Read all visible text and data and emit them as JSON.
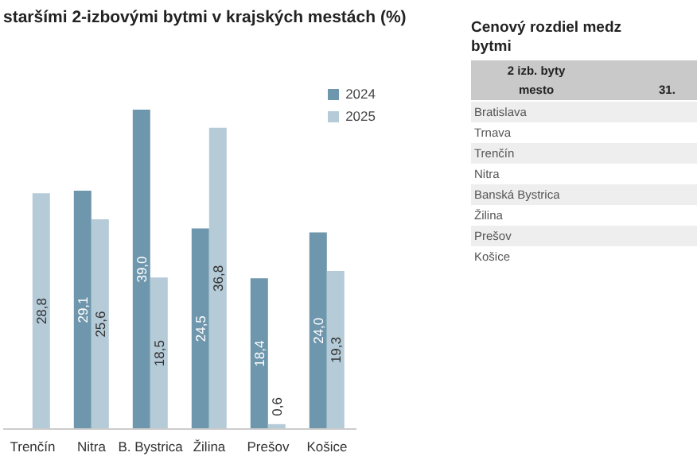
{
  "chart_data": [
    {
      "type": "bar",
      "title": "staršími 2-izbovými bytmi v krajských mestách (%)",
      "categories": [
        "Trenčín",
        "Nitra",
        "B. Bystrica",
        "Žilina",
        "Prešov",
        "Košice"
      ],
      "series": [
        {
          "name": "2024",
          "color": "#6e96ac",
          "values": [
            null,
            29.1,
            39.0,
            24.5,
            18.4,
            24.0
          ],
          "value_labels": [
            null,
            "29,1",
            "39,0",
            "24,5",
            "18,4",
            "24,0"
          ]
        },
        {
          "name": "2025",
          "color": "#b5cbd8",
          "values": [
            28.8,
            25.6,
            18.5,
            36.8,
            0.6,
            19.3
          ],
          "value_labels": [
            "28,8",
            "25,6",
            "18,5",
            "36,8",
            "0,6",
            "19,3"
          ]
        }
      ],
      "legend": "top right"
    },
    {
      "type": "other",
      "title": "Cenový rozdiel medz",
      "subtitle": "bytmi",
      "annotations": [
        "2 izb. byty",
        "mesto",
        "31.",
        "Bratislava",
        "Trnava",
        "Trenčín",
        "Nitra",
        "Banská Bystrica",
        "Žilina",
        "Prešov",
        "Košice"
      ]
    }
  ]
}
